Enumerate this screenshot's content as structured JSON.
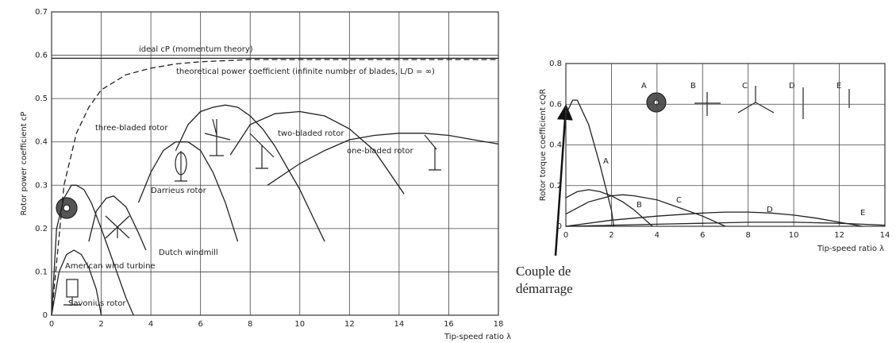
{
  "chart_data": [
    {
      "type": "line",
      "x_label": "Tip-speed ratio λ",
      "y_label": "Rotor power coefficient cP",
      "xlim": [
        0,
        18
      ],
      "xticks": [
        0,
        2,
        4,
        6,
        8,
        10,
        12,
        14,
        16,
        18
      ],
      "ylim": [
        0,
        0.7
      ],
      "yticks": [
        0,
        0.1,
        0.2,
        0.3,
        0.4,
        0.5,
        0.6,
        0.7
      ],
      "grid": true,
      "series": [
        {
          "name": "ideal cP (momentum theory)",
          "color": "#222222",
          "x": [
            0,
            18
          ],
          "values": [
            0.593,
            0.593
          ]
        },
        {
          "name": "theoretical power coefficient (infinite number of blades, L/D = ∞)",
          "color": "#222222",
          "linestyle": "dashed",
          "x": [
            0,
            0.5,
            1,
            1.5,
            2,
            3,
            4,
            5,
            6,
            8,
            10,
            14,
            18
          ],
          "values": [
            0,
            0.3,
            0.42,
            0.48,
            0.52,
            0.555,
            0.57,
            0.58,
            0.585,
            0.59,
            0.59,
            0.59,
            0.59
          ]
        },
        {
          "name": "Savonius rotor",
          "color": "#222222",
          "x": [
            0,
            0.3,
            0.6,
            0.9,
            1.2,
            1.5,
            1.8,
            2.0
          ],
          "values": [
            0,
            0.1,
            0.14,
            0.15,
            0.14,
            0.11,
            0.06,
            0
          ]
        },
        {
          "name": "American wind turbine",
          "color": "#222222",
          "x": [
            0,
            0.2,
            0.5,
            0.8,
            1.0,
            1.3,
            1.6,
            2.0,
            2.5,
            3.0,
            3.3
          ],
          "values": [
            0,
            0.2,
            0.27,
            0.3,
            0.3,
            0.29,
            0.26,
            0.2,
            0.12,
            0.04,
            0
          ]
        },
        {
          "name": "Dutch windmill",
          "color": "#222222",
          "x": [
            1.5,
            1.8,
            2.2,
            2.5,
            3.0,
            3.5,
            3.8
          ],
          "values": [
            0.17,
            0.24,
            0.27,
            0.275,
            0.25,
            0.19,
            0.15
          ]
        },
        {
          "name": "Darrieus rotor",
          "color": "#222222",
          "x": [
            3.5,
            4,
            4.5,
            5,
            5.5,
            6,
            6.5,
            7,
            7.5
          ],
          "values": [
            0.26,
            0.33,
            0.38,
            0.4,
            0.4,
            0.38,
            0.33,
            0.26,
            0.17
          ]
        },
        {
          "name": "three-bladed rotor",
          "color": "#222222",
          "x": [
            5,
            5.5,
            6,
            6.5,
            7,
            7.5,
            8,
            8.5,
            9,
            9.5,
            10,
            10.5,
            11
          ],
          "values": [
            0.38,
            0.44,
            0.47,
            0.48,
            0.485,
            0.48,
            0.46,
            0.43,
            0.39,
            0.34,
            0.29,
            0.23,
            0.17
          ]
        },
        {
          "name": "two-bladed rotor",
          "color": "#222222",
          "x": [
            7.2,
            8,
            9,
            10,
            11,
            12,
            13,
            14.2
          ],
          "values": [
            0.37,
            0.44,
            0.465,
            0.47,
            0.46,
            0.43,
            0.38,
            0.28
          ]
        },
        {
          "name": "one-bladed rotor",
          "color": "#222222",
          "x": [
            8.7,
            10,
            11,
            12,
            13,
            14,
            15,
            16,
            17,
            18
          ],
          "values": [
            0.3,
            0.35,
            0.38,
            0.405,
            0.415,
            0.42,
            0.42,
            0.415,
            0.405,
            0.395
          ]
        }
      ]
    },
    {
      "type": "line",
      "x_label": "Tip-speed ratio λ",
      "y_label": "Rotor torque coefficient cQR",
      "xlim": [
        0,
        14
      ],
      "xticks": [
        0,
        2,
        4,
        6,
        8,
        10,
        12,
        14
      ],
      "ylim": [
        0,
        0.8
      ],
      "yticks": [
        0,
        0.2,
        0.4,
        0.6,
        0.8
      ],
      "grid": true,
      "annotation": [
        "Couple de",
        "démarrage"
      ],
      "series": [
        {
          "name": "A",
          "color": "#222222",
          "x": [
            0,
            0.3,
            0.5,
            1,
            1.5,
            2,
            2.1
          ],
          "values": [
            0.55,
            0.62,
            0.62,
            0.5,
            0.3,
            0.08,
            0
          ]
        },
        {
          "name": "B",
          "color": "#222222",
          "x": [
            0,
            0.5,
            1,
            1.5,
            2,
            2.5,
            3,
            3.5,
            3.8
          ],
          "values": [
            0.14,
            0.17,
            0.18,
            0.17,
            0.15,
            0.12,
            0.08,
            0.03,
            0
          ]
        },
        {
          "name": "C",
          "color": "#222222",
          "x": [
            0,
            1,
            2,
            2.5,
            3,
            4,
            5,
            6,
            7
          ],
          "values": [
            0.06,
            0.12,
            0.15,
            0.155,
            0.15,
            0.13,
            0.09,
            0.05,
            0
          ]
        },
        {
          "name": "D",
          "color": "#222222",
          "x": [
            0,
            2,
            4,
            6,
            7,
            8,
            9,
            10,
            11,
            12,
            13
          ],
          "values": [
            0,
            0.03,
            0.05,
            0.065,
            0.07,
            0.07,
            0.065,
            0.055,
            0.04,
            0.02,
            0
          ]
        },
        {
          "name": "E",
          "color": "#222222",
          "x": [
            0,
            4,
            6,
            8,
            10,
            12,
            13,
            14
          ],
          "values": [
            0,
            0.01,
            0.015,
            0.02,
            0.02,
            0.015,
            0.01,
            0.005
          ]
        }
      ]
    }
  ]
}
